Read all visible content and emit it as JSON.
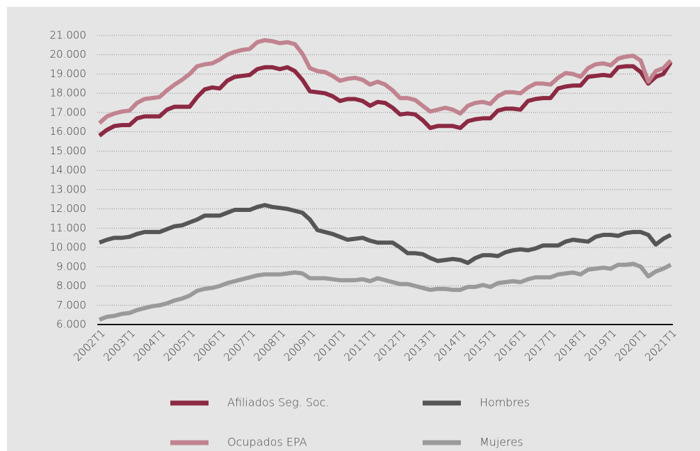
{
  "chart_data": {
    "type": "line",
    "categories": [
      "2002T1",
      null,
      null,
      null,
      "2003T1",
      null,
      null,
      null,
      "2004T1",
      null,
      null,
      null,
      "2005T1",
      null,
      null,
      null,
      "2006T1",
      null,
      null,
      null,
      "2007T1",
      null,
      null,
      null,
      "2008T1",
      null,
      null,
      null,
      "2009T1",
      null,
      null,
      null,
      "2010T1",
      null,
      null,
      null,
      "2011T1",
      null,
      null,
      null,
      "2012T1",
      null,
      null,
      null,
      "2013T1",
      null,
      null,
      null,
      "2014T1",
      null,
      null,
      null,
      "2015T1",
      null,
      null,
      null,
      "2016T1",
      null,
      null,
      null,
      "2017T1",
      null,
      null,
      null,
      "2018T1",
      null,
      null,
      null,
      "2019T1",
      null,
      null,
      null,
      "2020T1",
      null,
      null,
      null,
      "2021T1"
    ],
    "series": [
      {
        "name": "Afiliados Seg. Soc.",
        "color": "#8c2a43",
        "values": [
          15800,
          16100,
          16300,
          16350,
          16350,
          16700,
          16800,
          16800,
          16800,
          17150,
          17300,
          17300,
          17300,
          17800,
          18200,
          18300,
          18250,
          18650,
          18850,
          18900,
          18950,
          19250,
          19350,
          19350,
          19250,
          19350,
          19150,
          18700,
          18100,
          18050,
          18000,
          17850,
          17600,
          17700,
          17700,
          17600,
          17350,
          17550,
          17500,
          17250,
          16900,
          16950,
          16900,
          16600,
          16200,
          16300,
          16300,
          16300,
          16200,
          16550,
          16650,
          16700,
          16700,
          17100,
          17200,
          17200,
          17150,
          17600,
          17700,
          17750,
          17750,
          18250,
          18350,
          18400,
          18400,
          18850,
          18900,
          18950,
          18900,
          19350,
          19400,
          19400,
          19100,
          18500,
          18850,
          19000,
          19600
        ]
      },
      {
        "name": "Hombres",
        "color": "#565656",
        "values": [
          10250,
          10400,
          10500,
          10500,
          10550,
          10700,
          10800,
          10800,
          10800,
          10950,
          11100,
          11150,
          11300,
          11450,
          11650,
          11650,
          11650,
          11800,
          11950,
          11950,
          11950,
          12100,
          12200,
          12100,
          12050,
          12000,
          11900,
          11800,
          11450,
          10900,
          10800,
          10700,
          10550,
          10400,
          10450,
          10500,
          10350,
          10250,
          10250,
          10250,
          10000,
          9700,
          9700,
          9650,
          9450,
          9300,
          9350,
          9400,
          9350,
          9200,
          9450,
          9600,
          9600,
          9550,
          9750,
          9850,
          9900,
          9850,
          9950,
          10100,
          10100,
          10100,
          10300,
          10400,
          10350,
          10300,
          10550,
          10650,
          10650,
          10600,
          10750,
          10800,
          10800,
          10650,
          10150,
          10450,
          10650
        ]
      },
      {
        "name": "Ocupados EPA",
        "color": "#c1838f",
        "values": [
          16450,
          16800,
          16950,
          17050,
          17100,
          17500,
          17700,
          17750,
          17800,
          18150,
          18450,
          18700,
          19000,
          19400,
          19500,
          19550,
          19750,
          20000,
          20150,
          20250,
          20300,
          20650,
          20750,
          20700,
          20600,
          20650,
          20550,
          20050,
          19300,
          19150,
          19100,
          18900,
          18650,
          18750,
          18800,
          18700,
          18450,
          18600,
          18450,
          18150,
          17750,
          17750,
          17650,
          17350,
          17050,
          17150,
          17250,
          17150,
          16950,
          17350,
          17500,
          17550,
          17450,
          17850,
          18050,
          18050,
          18000,
          18300,
          18500,
          18500,
          18450,
          18800,
          19050,
          19000,
          18850,
          19300,
          19500,
          19550,
          19450,
          19800,
          19900,
          19950,
          19700,
          18600,
          19150,
          19300,
          19700
        ]
      },
      {
        "name": "Mujeres",
        "color": "#9a9a9a",
        "values": [
          6250,
          6400,
          6450,
          6550,
          6600,
          6750,
          6850,
          6950,
          7000,
          7100,
          7250,
          7350,
          7500,
          7750,
          7850,
          7900,
          8000,
          8150,
          8250,
          8350,
          8450,
          8550,
          8600,
          8600,
          8600,
          8650,
          8700,
          8650,
          8400,
          8400,
          8400,
          8350,
          8300,
          8300,
          8300,
          8350,
          8250,
          8400,
          8300,
          8200,
          8100,
          8100,
          8000,
          7900,
          7800,
          7850,
          7850,
          7800,
          7800,
          7950,
          7950,
          8050,
          7950,
          8150,
          8200,
          8250,
          8200,
          8350,
          8450,
          8450,
          8450,
          8600,
          8650,
          8700,
          8600,
          8850,
          8900,
          8950,
          8900,
          9100,
          9100,
          9150,
          9000,
          8500,
          8750,
          8900,
          9100
        ]
      }
    ],
    "ylim": [
      6000,
      21000
    ],
    "yticks": [
      {
        "value": 6000,
        "label": "6.000"
      },
      {
        "value": 7000,
        "label": "7.000"
      },
      {
        "value": 8000,
        "label": "8.000"
      },
      {
        "value": 9000,
        "label": "9.000"
      },
      {
        "value": 10000,
        "label": "10.000"
      },
      {
        "value": 11000,
        "label": "11.000"
      },
      {
        "value": 12000,
        "label": "12.000"
      },
      {
        "value": 13000,
        "label": "13.000"
      },
      {
        "value": 14000,
        "label": "14.000"
      },
      {
        "value": 15000,
        "label": "15.000"
      },
      {
        "value": 16000,
        "label": "16.000"
      },
      {
        "value": 17000,
        "label": "17.000"
      },
      {
        "value": 18000,
        "label": "18.000"
      },
      {
        "value": 19000,
        "label": "19.000"
      },
      {
        "value": 20000,
        "label": "20.000"
      },
      {
        "value": 21000,
        "label": "21.000"
      }
    ],
    "grid": true
  }
}
